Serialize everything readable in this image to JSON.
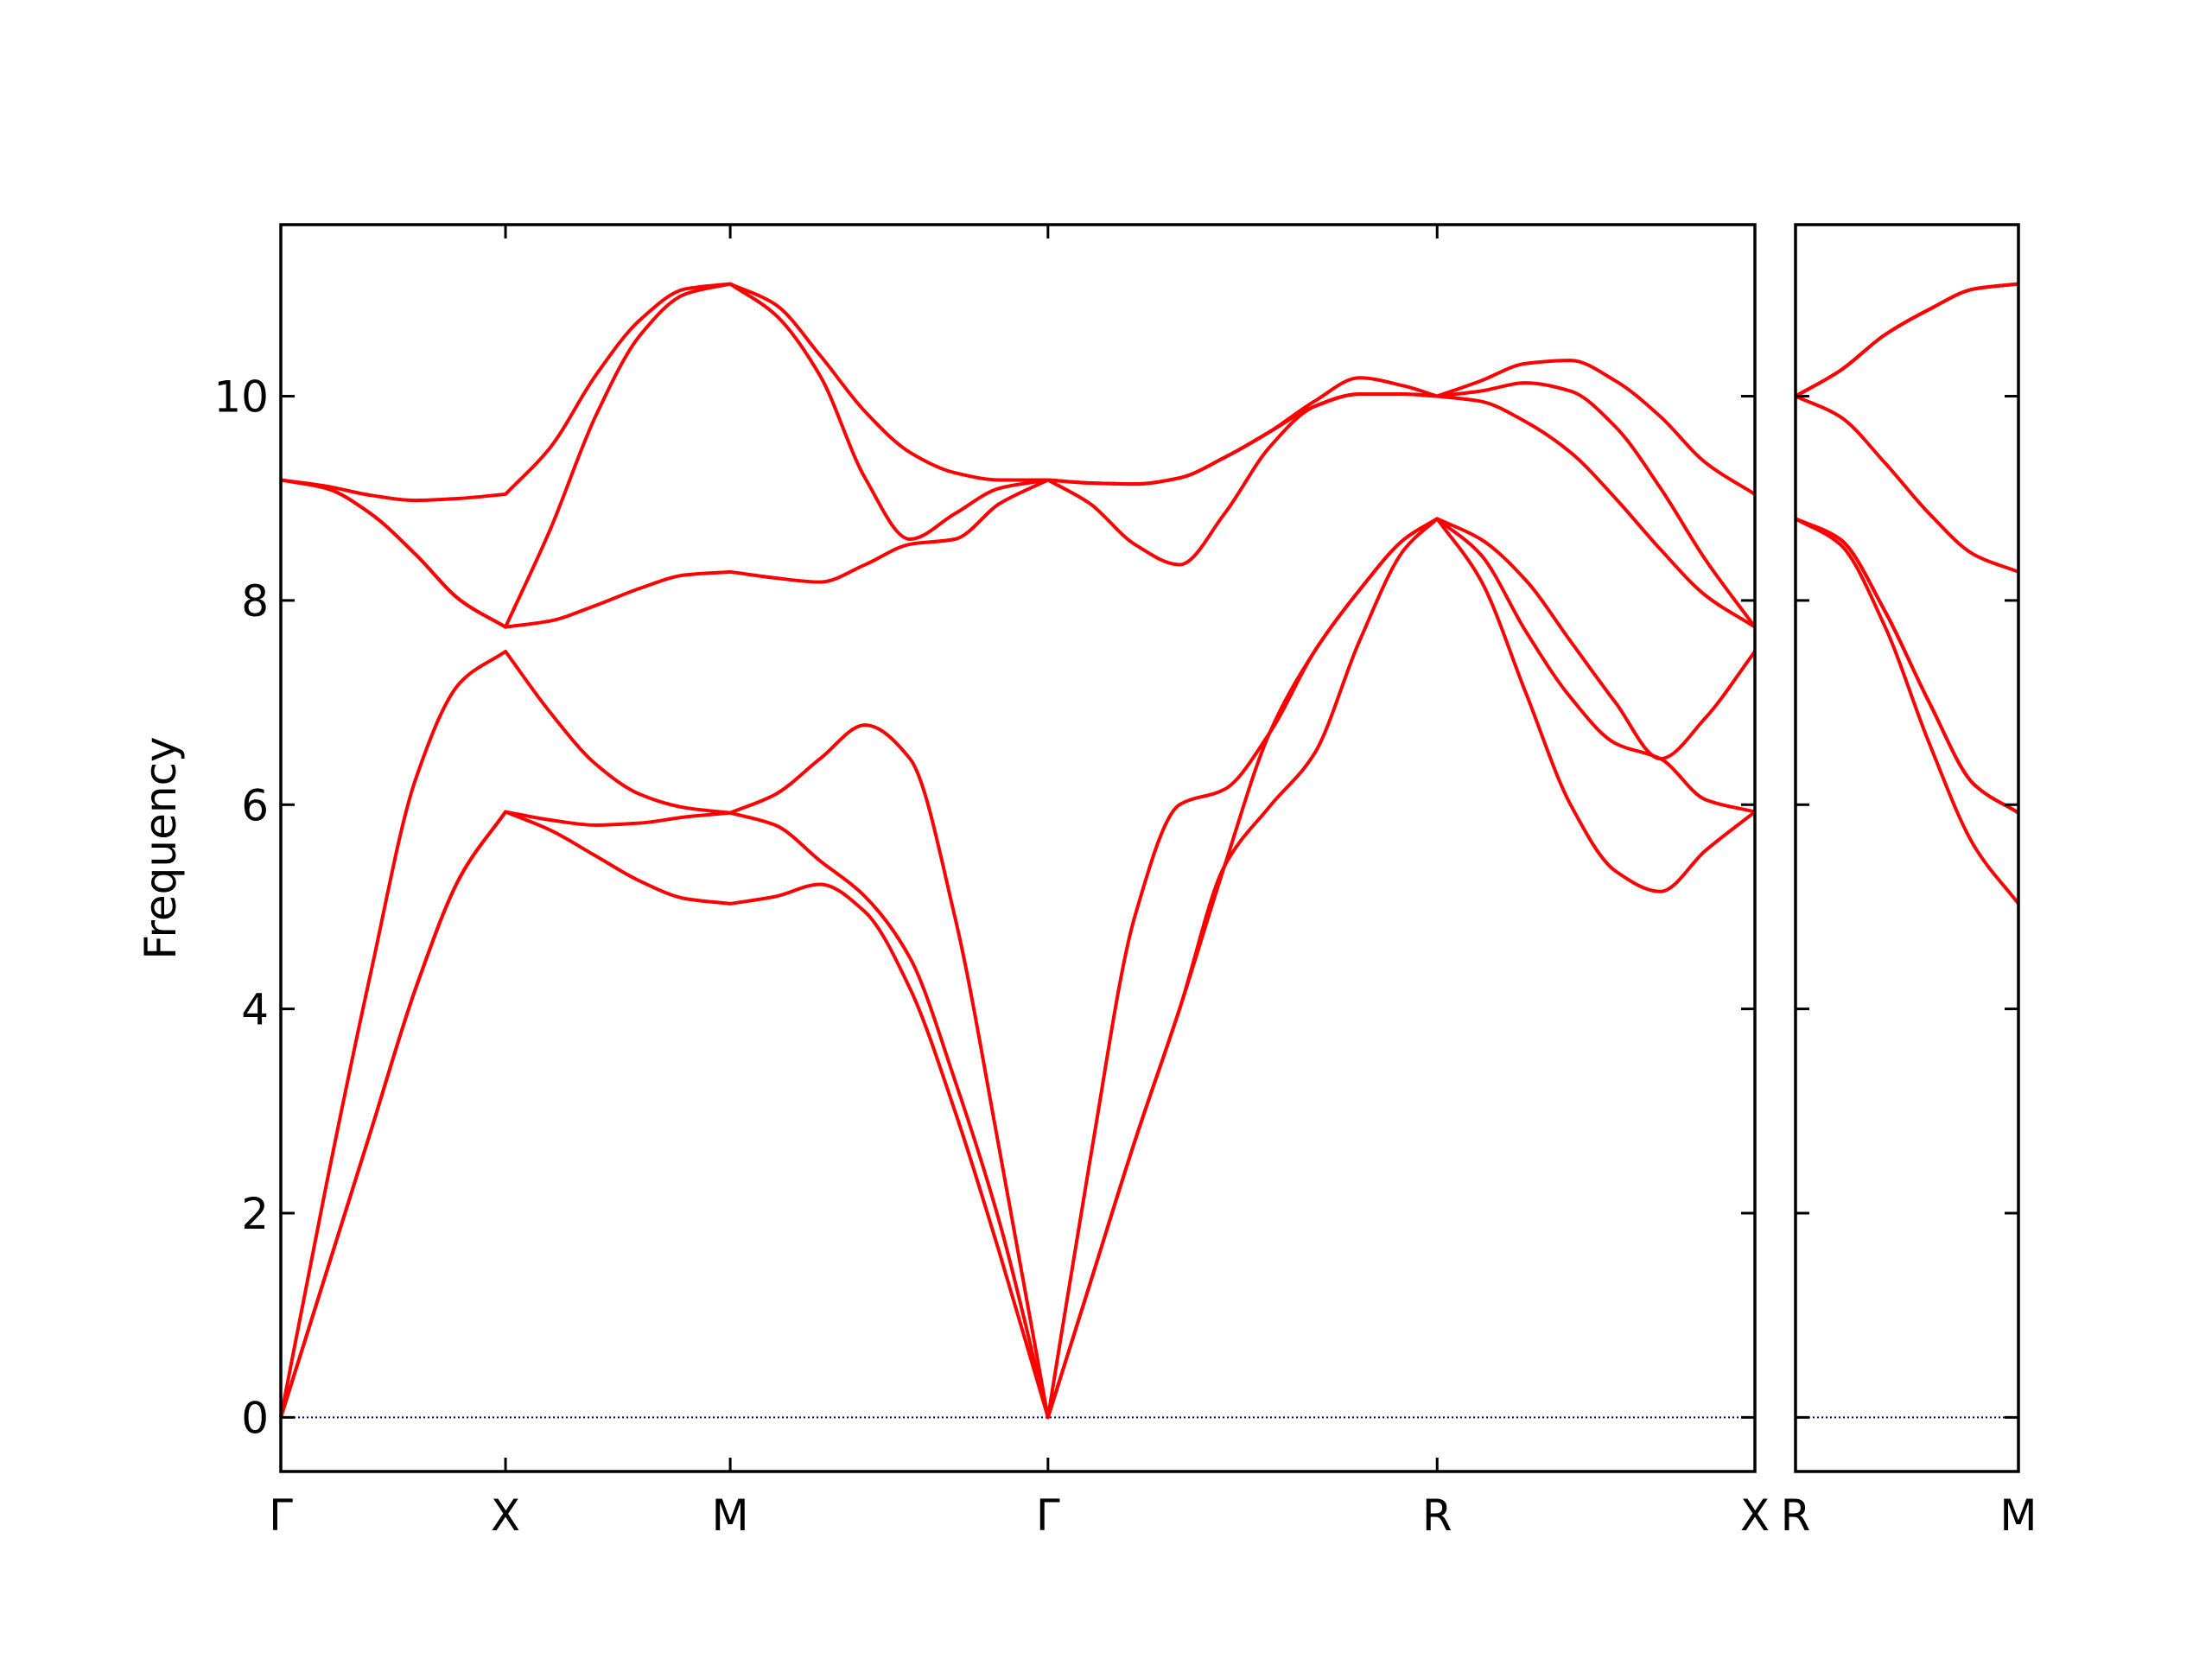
{
  "chart_data": [
    {
      "type": "line",
      "ylabel": "Frequency",
      "x": [
        0,
        0.1,
        0.2,
        0.3,
        0.4,
        0.5,
        0.6,
        0.7,
        0.8,
        0.9,
        1.0,
        1.1,
        1.2,
        1.3,
        1.4,
        1.5,
        1.6,
        1.7071,
        1.8,
        1.9,
        2.0,
        2.1,
        2.2,
        2.3,
        2.4,
        2.5,
        2.5731,
        2.67,
        2.77,
        2.87,
        2.97,
        3.07,
        3.17,
        3.2802
      ],
      "xlim": [
        0,
        3.2802
      ],
      "xticks": [
        {
          "value": 0,
          "label": "Γ"
        },
        {
          "value": 0.5,
          "label": "X"
        },
        {
          "value": 1.0,
          "label": "M"
        },
        {
          "value": 1.7071,
          "label": "Γ"
        },
        {
          "value": 2.5731,
          "label": "R"
        },
        {
          "value": 3.2802,
          "label": "X"
        }
      ],
      "ylim": [
        -0.53,
        11.68
      ],
      "yticks": [
        0,
        2,
        4,
        6,
        8,
        10
      ],
      "show_ytick_labels": true,
      "hline": {
        "y": 0,
        "color": "#00008b"
      },
      "series": [
        {
          "color": "#ff0000",
          "values": [
            0,
            1.4,
            2.8,
            4.2,
            5.3,
            5.93,
            5.75,
            5.5,
            5.25,
            5.08,
            5.03,
            5.1,
            5.22,
            4.95,
            4.2,
            3.0,
            1.6,
            0,
            1.3,
            2.7,
            4.0,
            5.4,
            5.98,
            6.5,
            7.6,
            8.5,
            8.8,
            8.2,
            7.1,
            6.0,
            5.35,
            5.15,
            5.55,
            5.93
          ]
        },
        {
          "color": "#ff0000",
          "values": [
            0,
            1.4,
            2.8,
            4.2,
            5.3,
            5.93,
            5.85,
            5.8,
            5.82,
            5.88,
            5.92,
            5.8,
            5.45,
            5.1,
            4.5,
            3.3,
            1.9,
            0,
            1.3,
            2.7,
            4.0,
            5.4,
            6.7,
            7.5,
            8.1,
            8.6,
            8.8,
            8.45,
            7.7,
            7.05,
            6.6,
            6.45,
            6.05,
            5.93
          ]
        },
        {
          "color": "#ff0000",
          "values": [
            0,
            2.25,
            4.35,
            6.25,
            7.2,
            7.5,
            6.9,
            6.4,
            6.1,
            5.97,
            5.92,
            6.1,
            6.45,
            6.78,
            6.45,
            4.9,
            2.6,
            0,
            2.5,
            4.9,
            6.0,
            6.15,
            6.7,
            7.5,
            8.1,
            8.6,
            8.8,
            8.6,
            8.2,
            7.6,
            7.0,
            6.45,
            6.85,
            7.5
          ]
        },
        {
          "color": "#ff0000",
          "values": [
            9.18,
            9.1,
            8.85,
            8.45,
            8.0,
            7.74,
            7.8,
            7.95,
            8.12,
            8.25,
            8.28,
            8.22,
            8.18,
            8.35,
            8.55,
            8.6,
            8.95,
            9.18,
            8.95,
            8.55,
            8.35,
            8.85,
            9.5,
            9.9,
            10.02,
            10.02,
            10.0,
            9.95,
            9.75,
            9.45,
            9.0,
            8.5,
            8.05,
            7.74
          ]
        },
        {
          "color": "#ff0000",
          "values": [
            9.18,
            9.1,
            8.85,
            8.45,
            8.0,
            7.74,
            8.7,
            9.8,
            10.6,
            11.0,
            11.1,
            10.8,
            10.2,
            9.2,
            8.6,
            8.85,
            9.1,
            9.18,
            9.15,
            9.14,
            9.2,
            9.4,
            9.65,
            9.9,
            10.02,
            10.02,
            10.0,
            10.05,
            10.13,
            10.05,
            9.7,
            9.1,
            8.4,
            7.74
          ]
        },
        {
          "color": "#ff0000",
          "values": [
            9.18,
            9.12,
            9.03,
            8.98,
            9.0,
            9.04,
            9.5,
            10.2,
            10.75,
            11.05,
            11.1,
            10.9,
            10.4,
            9.85,
            9.45,
            9.25,
            9.18,
            9.18,
            9.15,
            9.14,
            9.2,
            9.4,
            9.65,
            9.95,
            10.18,
            10.1,
            10.0,
            10.15,
            10.32,
            10.35,
            10.15,
            9.8,
            9.35,
            9.04
          ]
        }
      ]
    },
    {
      "type": "line",
      "x": [
        0,
        0.1,
        0.2,
        0.3,
        0.4,
        0.5
      ],
      "xlim": [
        0,
        0.5
      ],
      "xticks": [
        {
          "value": 0,
          "label": "R"
        },
        {
          "value": 0.5,
          "label": "M"
        }
      ],
      "ylim": [
        -0.53,
        11.68
      ],
      "yticks": [
        0,
        2,
        4,
        6,
        8,
        10
      ],
      "show_ytick_labels": false,
      "hline": {
        "y": 0,
        "color": "#00008b"
      },
      "series": [
        {
          "color": "#ff0000",
          "values": [
            8.8,
            8.55,
            7.75,
            6.6,
            5.6,
            5.03
          ]
        },
        {
          "color": "#ff0000",
          "values": [
            8.8,
            8.6,
            7.9,
            7.0,
            6.2,
            5.92
          ]
        },
        {
          "color": "#ff0000",
          "values": [
            8.8,
            8.6,
            7.9,
            7.0,
            6.2,
            5.92
          ]
        },
        {
          "color": "#ff0000",
          "values": [
            10.0,
            9.8,
            9.35,
            8.85,
            8.45,
            8.28
          ]
        },
        {
          "color": "#ff0000",
          "values": [
            10.0,
            10.25,
            10.6,
            10.85,
            11.05,
            11.1
          ]
        },
        {
          "color": "#ff0000",
          "values": [
            10.0,
            10.25,
            10.6,
            10.85,
            11.05,
            11.1
          ]
        }
      ]
    }
  ]
}
